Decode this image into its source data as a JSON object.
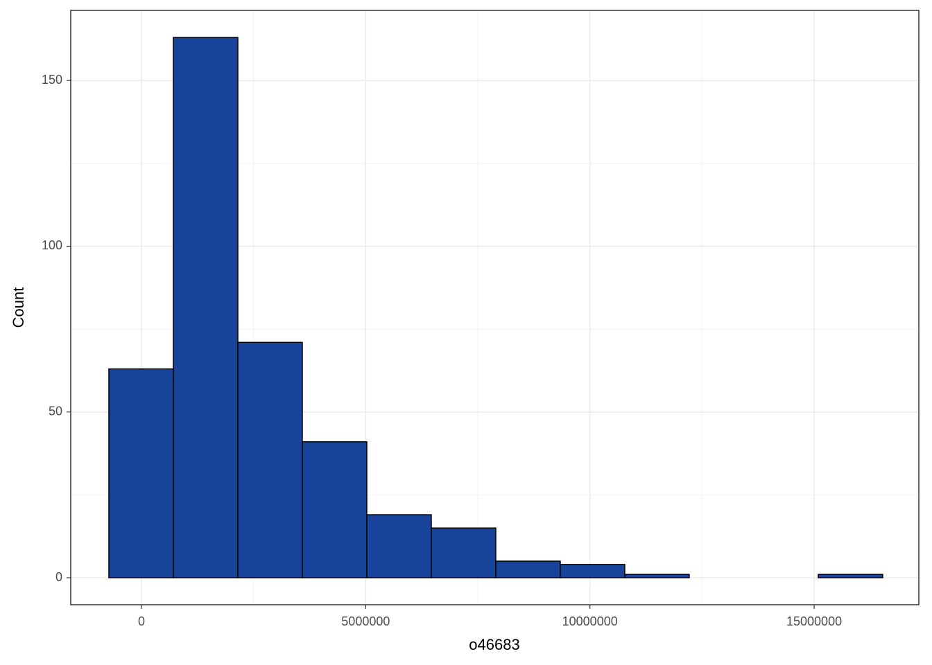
{
  "chart_data": {
    "type": "histogram",
    "x_label": "o46683",
    "y_label": "Count",
    "bins": [
      -727000,
      711000,
      2149000,
      3587000,
      5025000,
      6463000,
      7901000,
      9339000,
      10777000,
      12215000,
      13653000,
      15091000,
      16529000
    ],
    "values": [
      63,
      163,
      71,
      41,
      19,
      15,
      5,
      4,
      1,
      0,
      0,
      1
    ],
    "color": "#18439a",
    "edge_color": "#000000",
    "xlim": [
      -1577000,
      17334000
    ],
    "xticks": [
      0,
      5000000,
      10000000,
      15000000
    ],
    "ylim": [
      -8.15,
      171.15
    ],
    "yticks": [
      0,
      50,
      100,
      150
    ],
    "grid": true
  }
}
